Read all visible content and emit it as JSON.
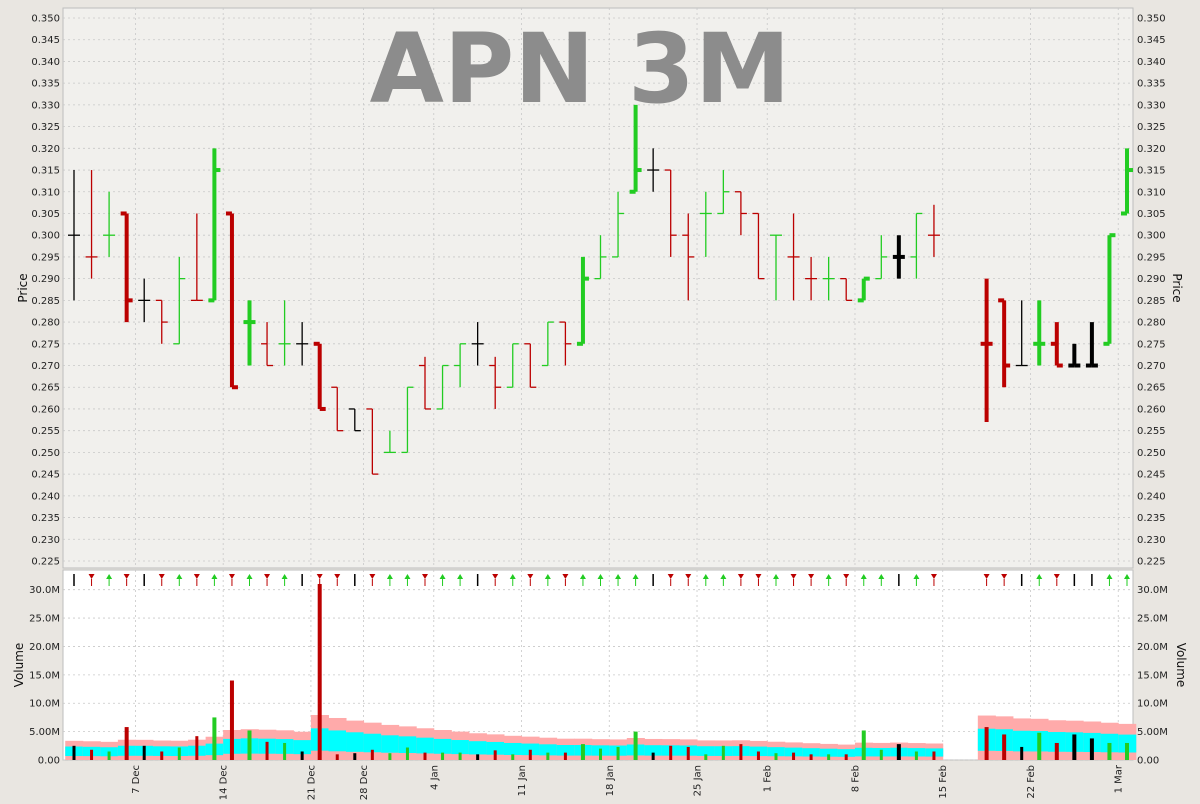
{
  "chart_data": {
    "type": "ohlc",
    "title": "APN 3M",
    "price_axis": {
      "label": "Price",
      "min": 0.225,
      "max": 0.35,
      "ticks": [
        "0.225",
        "0.230",
        "0.235",
        "0.240",
        "0.245",
        "0.250",
        "0.255",
        "0.260",
        "0.265",
        "0.270",
        "0.275",
        "0.280",
        "0.285",
        "0.290",
        "0.295",
        "0.300",
        "0.305",
        "0.310",
        "0.315",
        "0.320",
        "0.325",
        "0.330",
        "0.335",
        "0.340",
        "0.345",
        "0.350"
      ]
    },
    "volume_axis": {
      "label": "Volume",
      "min": 0,
      "max": 31000000,
      "ticks": [
        {
          "value": 0,
          "label": "0.00"
        },
        {
          "value": 5000000,
          "label": "5.00M"
        },
        {
          "value": 10000000,
          "label": "10.0M"
        },
        {
          "value": 15000000,
          "label": "15.0M"
        },
        {
          "value": 20000000,
          "label": "20.0M"
        },
        {
          "value": 25000000,
          "label": "25.0M"
        },
        {
          "value": 30000000,
          "label": "30.0M"
        }
      ]
    },
    "x_ticks": [
      {
        "label": "7 Dec",
        "index": 3.5
      },
      {
        "label": "14 Dec",
        "index": 8.5
      },
      {
        "label": "21 Dec",
        "index": 13.5
      },
      {
        "label": "28 Dec",
        "index": 16.5
      },
      {
        "label": "4 Jan",
        "index": 20.5
      },
      {
        "label": "11 Jan",
        "index": 25.5
      },
      {
        "label": "18 Jan",
        "index": 30.5
      },
      {
        "label": "25 Jan",
        "index": 35.5
      },
      {
        "label": "1 Feb",
        "index": 39.5
      },
      {
        "label": "8 Feb",
        "index": 44.5
      },
      {
        "label": "15 Feb",
        "index": 49.5
      },
      {
        "label": "22 Feb",
        "index": 54.5
      },
      {
        "label": "1 Mar",
        "index": 59.5
      }
    ],
    "colors": {
      "up": "#22cc22",
      "down": "#bb0000",
      "flat": "#000000",
      "band_outer": "#ffaaaa",
      "band_inner": "#00ffff",
      "grid": "#c8c8c8"
    },
    "bars": [
      {
        "i": 0,
        "o": 0.3,
        "h": 0.315,
        "l": 0.285,
        "c": 0.3,
        "v": 2500000,
        "dir": "flat",
        "hv": false
      },
      {
        "i": 1,
        "o": 0.295,
        "h": 0.315,
        "l": 0.29,
        "c": 0.295,
        "v": 1800000,
        "dir": "down",
        "hv": false
      },
      {
        "i": 2,
        "o": 0.3,
        "h": 0.31,
        "l": 0.295,
        "c": 0.3,
        "v": 1500000,
        "dir": "up",
        "hv": false
      },
      {
        "i": 3,
        "o": 0.305,
        "h": 0.305,
        "l": 0.28,
        "c": 0.285,
        "v": 5800000,
        "dir": "down",
        "hv": true
      },
      {
        "i": 4,
        "o": 0.285,
        "h": 0.29,
        "l": 0.28,
        "c": 0.285,
        "v": 2500000,
        "dir": "flat",
        "hv": false
      },
      {
        "i": 5,
        "o": 0.285,
        "h": 0.285,
        "l": 0.275,
        "c": 0.28,
        "v": 1500000,
        "dir": "down",
        "hv": false
      },
      {
        "i": 6,
        "o": 0.275,
        "h": 0.295,
        "l": 0.275,
        "c": 0.29,
        "v": 2200000,
        "dir": "up",
        "hv": false
      },
      {
        "i": 7,
        "o": 0.285,
        "h": 0.305,
        "l": 0.285,
        "c": 0.285,
        "v": 4200000,
        "dir": "down",
        "hv": false
      },
      {
        "i": 8,
        "o": 0.285,
        "h": 0.32,
        "l": 0.285,
        "c": 0.315,
        "v": 7500000,
        "dir": "up",
        "hv": true
      },
      {
        "i": 9,
        "o": 0.305,
        "h": 0.305,
        "l": 0.265,
        "c": 0.265,
        "v": 14000000,
        "dir": "down",
        "hv": true
      },
      {
        "i": 10,
        "o": 0.28,
        "h": 0.285,
        "l": 0.27,
        "c": 0.28,
        "v": 5200000,
        "dir": "up",
        "hv": true
      },
      {
        "i": 11,
        "o": 0.275,
        "h": 0.28,
        "l": 0.27,
        "c": 0.27,
        "v": 3200000,
        "dir": "down",
        "hv": false
      },
      {
        "i": 12,
        "o": 0.275,
        "h": 0.285,
        "l": 0.27,
        "c": 0.275,
        "v": 3000000,
        "dir": "up",
        "hv": false
      },
      {
        "i": 13,
        "o": 0.275,
        "h": 0.28,
        "l": 0.27,
        "c": 0.275,
        "v": 1500000,
        "dir": "flat",
        "hv": false
      },
      {
        "i": 14,
        "o": 0.275,
        "h": 0.275,
        "l": 0.26,
        "c": 0.26,
        "v": 31000000,
        "dir": "down",
        "hv": true
      },
      {
        "i": 15,
        "o": 0.265,
        "h": 0.265,
        "l": 0.255,
        "c": 0.255,
        "v": 1000000,
        "dir": "down",
        "hv": false
      },
      {
        "i": 16,
        "o": 0.26,
        "h": 0.26,
        "l": 0.255,
        "c": 0.255,
        "v": 1200000,
        "dir": "flat",
        "hv": false
      },
      {
        "i": 17,
        "o": 0.26,
        "h": 0.26,
        "l": 0.245,
        "c": 0.245,
        "v": 1800000,
        "dir": "down",
        "hv": false
      },
      {
        "i": 18,
        "o": 0.25,
        "h": 0.255,
        "l": 0.25,
        "c": 0.25,
        "v": 1200000,
        "dir": "up",
        "hv": false
      },
      {
        "i": 19,
        "o": 0.25,
        "h": 0.265,
        "l": 0.25,
        "c": 0.265,
        "v": 2200000,
        "dir": "up",
        "hv": false
      },
      {
        "i": 20,
        "o": 0.27,
        "h": 0.272,
        "l": 0.26,
        "c": 0.26,
        "v": 1300000,
        "dir": "down",
        "hv": false
      },
      {
        "i": 21,
        "o": 0.26,
        "h": 0.27,
        "l": 0.26,
        "c": 0.27,
        "v": 1300000,
        "dir": "up",
        "hv": false
      },
      {
        "i": 22,
        "o": 0.27,
        "h": 0.275,
        "l": 0.265,
        "c": 0.275,
        "v": 1300000,
        "dir": "up",
        "hv": false
      },
      {
        "i": 23,
        "o": 0.275,
        "h": 0.28,
        "l": 0.27,
        "c": 0.275,
        "v": 1000000,
        "dir": "flat",
        "hv": false
      },
      {
        "i": 24,
        "o": 0.27,
        "h": 0.272,
        "l": 0.26,
        "c": 0.265,
        "v": 1700000,
        "dir": "down",
        "hv": false
      },
      {
        "i": 25,
        "o": 0.265,
        "h": 0.275,
        "l": 0.265,
        "c": 0.275,
        "v": 1000000,
        "dir": "up",
        "hv": false
      },
      {
        "i": 26,
        "o": 0.275,
        "h": 0.275,
        "l": 0.265,
        "c": 0.265,
        "v": 1800000,
        "dir": "down",
        "hv": false
      },
      {
        "i": 27,
        "o": 0.27,
        "h": 0.28,
        "l": 0.27,
        "c": 0.28,
        "v": 1300000,
        "dir": "up",
        "hv": false
      },
      {
        "i": 28,
        "o": 0.28,
        "h": 0.28,
        "l": 0.27,
        "c": 0.275,
        "v": 1300000,
        "dir": "down",
        "hv": false
      },
      {
        "i": 29,
        "o": 0.275,
        "h": 0.295,
        "l": 0.275,
        "c": 0.29,
        "v": 2800000,
        "dir": "up",
        "hv": true
      },
      {
        "i": 30,
        "o": 0.29,
        "h": 0.3,
        "l": 0.29,
        "c": 0.295,
        "v": 2000000,
        "dir": "up",
        "hv": false
      },
      {
        "i": 31,
        "o": 0.295,
        "h": 0.31,
        "l": 0.295,
        "c": 0.305,
        "v": 2300000,
        "dir": "up",
        "hv": false
      },
      {
        "i": 32,
        "o": 0.31,
        "h": 0.33,
        "l": 0.31,
        "c": 0.315,
        "v": 5000000,
        "dir": "up",
        "hv": true
      },
      {
        "i": 33,
        "o": 0.315,
        "h": 0.32,
        "l": 0.31,
        "c": 0.315,
        "v": 1300000,
        "dir": "flat",
        "hv": false
      },
      {
        "i": 34,
        "o": 0.315,
        "h": 0.315,
        "l": 0.295,
        "c": 0.3,
        "v": 2500000,
        "dir": "down",
        "hv": false
      },
      {
        "i": 35,
        "o": 0.3,
        "h": 0.305,
        "l": 0.285,
        "c": 0.295,
        "v": 2300000,
        "dir": "down",
        "hv": false
      },
      {
        "i": 36,
        "o": 0.305,
        "h": 0.31,
        "l": 0.295,
        "c": 0.305,
        "v": 1000000,
        "dir": "up",
        "hv": false
      },
      {
        "i": 37,
        "o": 0.305,
        "h": 0.315,
        "l": 0.305,
        "c": 0.31,
        "v": 2500000,
        "dir": "up",
        "hv": false
      },
      {
        "i": 38,
        "o": 0.31,
        "h": 0.31,
        "l": 0.3,
        "c": 0.305,
        "v": 2800000,
        "dir": "down",
        "hv": false
      },
      {
        "i": 39,
        "o": 0.305,
        "h": 0.305,
        "l": 0.29,
        "c": 0.29,
        "v": 1500000,
        "dir": "down",
        "hv": false
      },
      {
        "i": 40,
        "o": 0.3,
        "h": 0.3,
        "l": 0.285,
        "c": 0.3,
        "v": 1200000,
        "dir": "up",
        "hv": false
      },
      {
        "i": 41,
        "o": 0.295,
        "h": 0.305,
        "l": 0.285,
        "c": 0.295,
        "v": 1300000,
        "dir": "down",
        "hv": false
      },
      {
        "i": 42,
        "o": 0.29,
        "h": 0.295,
        "l": 0.285,
        "c": 0.29,
        "v": 1000000,
        "dir": "down",
        "hv": false
      },
      {
        "i": 43,
        "o": 0.29,
        "h": 0.295,
        "l": 0.285,
        "c": 0.29,
        "v": 1000000,
        "dir": "up",
        "hv": false
      },
      {
        "i": 44,
        "o": 0.29,
        "h": 0.29,
        "l": 0.285,
        "c": 0.285,
        "v": 1000000,
        "dir": "down",
        "hv": false
      },
      {
        "i": 45,
        "o": 0.285,
        "h": 0.29,
        "l": 0.285,
        "c": 0.29,
        "v": 5200000,
        "dir": "up",
        "hv": true
      },
      {
        "i": 46,
        "o": 0.29,
        "h": 0.3,
        "l": 0.29,
        "c": 0.295,
        "v": 1800000,
        "dir": "up",
        "hv": false
      },
      {
        "i": 47,
        "o": 0.295,
        "h": 0.3,
        "l": 0.29,
        "c": 0.295,
        "v": 2800000,
        "dir": "flat",
        "hv": true
      },
      {
        "i": 48,
        "o": 0.295,
        "h": 0.305,
        "l": 0.29,
        "c": 0.305,
        "v": 1500000,
        "dir": "up",
        "hv": false
      },
      {
        "i": 49,
        "o": 0.3,
        "h": 0.307,
        "l": 0.295,
        "c": 0.3,
        "v": 1500000,
        "dir": "down",
        "hv": false
      },
      {
        "i": 52,
        "o": 0.275,
        "h": 0.29,
        "l": 0.257,
        "c": 0.275,
        "v": 5800000,
        "dir": "down",
        "hv": true
      },
      {
        "i": 53,
        "o": 0.285,
        "h": 0.285,
        "l": 0.265,
        "c": 0.27,
        "v": 4500000,
        "dir": "down",
        "hv": true
      },
      {
        "i": 54,
        "o": 0.27,
        "h": 0.285,
        "l": 0.27,
        "c": 0.27,
        "v": 2300000,
        "dir": "flat",
        "hv": false
      },
      {
        "i": 55,
        "o": 0.275,
        "h": 0.285,
        "l": 0.27,
        "c": 0.275,
        "v": 4800000,
        "dir": "up",
        "hv": true
      },
      {
        "i": 56,
        "o": 0.275,
        "h": 0.28,
        "l": 0.27,
        "c": 0.27,
        "v": 3000000,
        "dir": "down",
        "hv": true
      },
      {
        "i": 57,
        "o": 0.27,
        "h": 0.275,
        "l": 0.27,
        "c": 0.27,
        "v": 4500000,
        "dir": "flat",
        "hv": true
      },
      {
        "i": 58,
        "o": 0.27,
        "h": 0.28,
        "l": 0.27,
        "c": 0.27,
        "v": 3800000,
        "dir": "flat",
        "hv": true
      },
      {
        "i": 59,
        "o": 0.275,
        "h": 0.3,
        "l": 0.275,
        "c": 0.3,
        "v": 3000000,
        "dir": "up",
        "hv": true
      },
      {
        "i": 60,
        "o": 0.305,
        "h": 0.32,
        "l": 0.305,
        "c": 0.315,
        "v": 3000000,
        "dir": "up",
        "hv": true
      }
    ]
  }
}
